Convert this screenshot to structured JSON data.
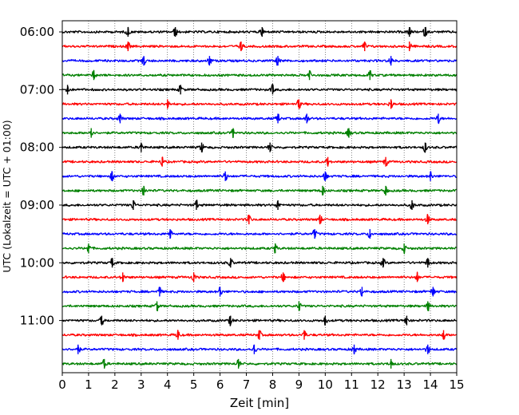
{
  "chart_data": {
    "type": "line",
    "title": "",
    "xlabel": "Zeit  [min]",
    "ylabel": "UTC (Lokalzeit = UTC + 01:00)",
    "xlim": [
      0,
      15
    ],
    "x_ticks": [
      0,
      1,
      2,
      3,
      4,
      5,
      6,
      7,
      8,
      9,
      10,
      11,
      12,
      13,
      14,
      15
    ],
    "grid": "vertical dotted lines at each minute",
    "row_interval_minutes": 15,
    "row_colors": [
      "#000000",
      "#ff0000",
      "#0000ff",
      "#008000"
    ],
    "rows": [
      {
        "start": "06:00",
        "color": "#000000",
        "label": "06:00",
        "events": [
          2.5,
          4.3,
          7.6,
          13.2,
          13.8
        ]
      },
      {
        "start": "06:15",
        "color": "#ff0000",
        "label": "",
        "events": [
          2.5,
          6.8,
          11.5,
          13.2
        ]
      },
      {
        "start": "06:30",
        "color": "#0000ff",
        "label": "",
        "events": [
          3.1,
          5.6,
          8.2,
          12.5
        ]
      },
      {
        "start": "06:45",
        "color": "#008000",
        "label": "",
        "events": [
          1.2,
          9.4,
          11.7
        ]
      },
      {
        "start": "07:00",
        "color": "#000000",
        "label": "07:00",
        "events": [
          0.2,
          4.5,
          8.0
        ]
      },
      {
        "start": "07:15",
        "color": "#ff0000",
        "label": "",
        "events": [
          4.0,
          9.0,
          12.5
        ]
      },
      {
        "start": "07:30",
        "color": "#0000ff",
        "label": "",
        "events": [
          2.2,
          8.2,
          9.3,
          14.3
        ]
      },
      {
        "start": "07:45",
        "color": "#008000",
        "label": "",
        "events": [
          1.1,
          6.5,
          10.9
        ]
      },
      {
        "start": "08:00",
        "color": "#000000",
        "label": "08:00",
        "events": [
          3.0,
          5.3,
          7.9,
          13.8
        ]
      },
      {
        "start": "08:15",
        "color": "#ff0000",
        "label": "",
        "events": [
          3.8,
          10.1,
          12.3
        ]
      },
      {
        "start": "08:30",
        "color": "#0000ff",
        "label": "",
        "events": [
          1.9,
          6.2,
          10.0,
          14.0
        ]
      },
      {
        "start": "08:45",
        "color": "#008000",
        "label": "",
        "events": [
          3.1,
          9.9,
          12.3
        ]
      },
      {
        "start": "09:00",
        "color": "#000000",
        "label": "09:00",
        "events": [
          2.7,
          5.1,
          8.2,
          13.3
        ]
      },
      {
        "start": "09:15",
        "color": "#ff0000",
        "label": "",
        "events": [
          7.1,
          9.8,
          13.9
        ]
      },
      {
        "start": "09:30",
        "color": "#0000ff",
        "label": "",
        "events": [
          4.1,
          9.6,
          11.7
        ]
      },
      {
        "start": "09:45",
        "color": "#008000",
        "label": "",
        "events": [
          1.0,
          8.1,
          13.0
        ]
      },
      {
        "start": "10:00",
        "color": "#000000",
        "label": "10:00",
        "events": [
          1.9,
          6.4,
          12.2,
          13.9
        ]
      },
      {
        "start": "10:15",
        "color": "#ff0000",
        "label": "",
        "events": [
          2.3,
          5.0,
          8.4,
          13.5
        ]
      },
      {
        "start": "10:30",
        "color": "#0000ff",
        "label": "",
        "events": [
          3.7,
          6.0,
          11.4,
          14.1
        ]
      },
      {
        "start": "10:45",
        "color": "#008000",
        "label": "",
        "events": [
          3.6,
          9.0,
          13.9
        ]
      },
      {
        "start": "11:00",
        "color": "#000000",
        "label": "11:00",
        "events": [
          1.5,
          6.4,
          10.0,
          13.1
        ]
      },
      {
        "start": "11:15",
        "color": "#ff0000",
        "label": "",
        "events": [
          4.4,
          7.5,
          9.2,
          14.5
        ]
      },
      {
        "start": "11:30",
        "color": "#0000ff",
        "label": "",
        "events": [
          0.6,
          7.3,
          11.1,
          13.9
        ]
      },
      {
        "start": "11:45",
        "color": "#008000",
        "label": "",
        "events": [
          1.6,
          6.7,
          12.5
        ]
      }
    ]
  }
}
